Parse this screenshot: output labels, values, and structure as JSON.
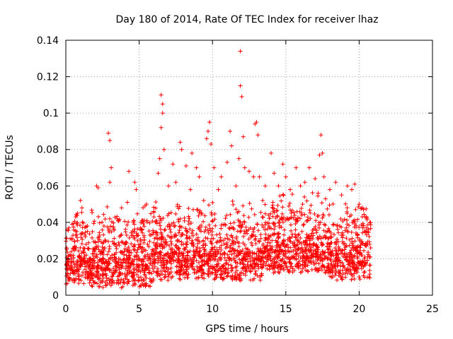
{
  "chart_data": {
    "type": "scatter",
    "title": "Day 180 of 2014, Rate Of TEC Index for receiver lhaz",
    "xlabel": "GPS time / hours",
    "ylabel": "ROTI / TECUs",
    "xlim": [
      0,
      25
    ],
    "ylim": [
      0,
      0.14
    ],
    "xticks": [
      0,
      5,
      10,
      15,
      20,
      25
    ],
    "xtick_labels": [
      "0",
      "5",
      "10",
      "15",
      "20",
      "25"
    ],
    "yticks": [
      0,
      0.02,
      0.04,
      0.06,
      0.08,
      0.1,
      0.12,
      0.14
    ],
    "ytick_labels": [
      "0",
      "0.02",
      "0.04",
      "0.06",
      "0.08",
      "0.1",
      "0.12",
      "0.14"
    ],
    "grid": true,
    "marker": "+",
    "color": "#ff0000",
    "data_x_range": [
      0,
      20.8
    ],
    "series": [
      {
        "name": "ROTI",
        "points": [
          [
            0.1,
            0.012
          ],
          [
            0.3,
            0.031
          ],
          [
            0.5,
            0.022
          ],
          [
            0.8,
            0.045
          ],
          [
            1.0,
            0.052
          ],
          [
            1.1,
            0.048
          ],
          [
            2.1,
            0.06
          ],
          [
            2.2,
            0.059
          ],
          [
            2.3,
            0.033
          ],
          [
            2.6,
            0.038
          ],
          [
            2.9,
            0.089
          ],
          [
            3.0,
            0.085
          ],
          [
            3.0,
            0.062
          ],
          [
            3.1,
            0.07
          ],
          [
            3.5,
            0.042
          ],
          [
            3.8,
            0.048
          ],
          [
            4.2,
            0.051
          ],
          [
            4.3,
            0.068
          ],
          [
            4.6,
            0.04
          ],
          [
            4.7,
            0.062
          ],
          [
            4.8,
            0.058
          ],
          [
            5.4,
            0.049
          ],
          [
            5.5,
            0.05
          ],
          [
            6.0,
            0.043
          ],
          [
            6.3,
            0.067
          ],
          [
            6.5,
            0.11
          ],
          [
            6.6,
            0.105
          ],
          [
            6.6,
            0.1
          ],
          [
            6.5,
            0.092
          ],
          [
            6.4,
            0.075
          ],
          [
            6.7,
            0.08
          ],
          [
            7.0,
            0.06
          ],
          [
            7.3,
            0.072
          ],
          [
            7.5,
            0.062
          ],
          [
            7.8,
            0.084
          ],
          [
            7.9,
            0.08
          ],
          [
            8.2,
            0.071
          ],
          [
            8.5,
            0.058
          ],
          [
            8.6,
            0.078
          ],
          [
            8.9,
            0.07
          ],
          [
            9.1,
            0.065
          ],
          [
            9.4,
            0.052
          ],
          [
            9.6,
            0.086
          ],
          [
            9.7,
            0.09
          ],
          [
            9.8,
            0.095
          ],
          [
            9.9,
            0.083
          ],
          [
            10.1,
            0.07
          ],
          [
            10.4,
            0.058
          ],
          [
            10.6,
            0.065
          ],
          [
            11.0,
            0.073
          ],
          [
            11.2,
            0.09
          ],
          [
            11.3,
            0.082
          ],
          [
            11.6,
            0.06
          ],
          [
            11.8,
            0.075
          ],
          [
            11.9,
            0.134
          ],
          [
            11.9,
            0.115
          ],
          [
            12.0,
            0.109
          ],
          [
            12.1,
            0.087
          ],
          [
            12.2,
            0.07
          ],
          [
            12.5,
            0.068
          ],
          [
            12.8,
            0.065
          ],
          [
            12.9,
            0.094
          ],
          [
            13.0,
            0.095
          ],
          [
            13.1,
            0.088
          ],
          [
            13.2,
            0.065
          ],
          [
            13.6,
            0.06
          ],
          [
            14.0,
            0.078
          ],
          [
            14.2,
            0.067
          ],
          [
            14.5,
            0.06
          ],
          [
            14.8,
            0.072
          ],
          [
            15.0,
            0.065
          ],
          [
            15.3,
            0.058
          ],
          [
            15.7,
            0.07
          ],
          [
            16.0,
            0.06
          ],
          [
            16.3,
            0.062
          ],
          [
            16.6,
            0.07
          ],
          [
            17.0,
            0.064
          ],
          [
            17.3,
            0.077
          ],
          [
            17.4,
            0.088
          ],
          [
            17.5,
            0.078
          ],
          [
            17.6,
            0.065
          ],
          [
            18.0,
            0.058
          ],
          [
            18.4,
            0.062
          ],
          [
            18.8,
            0.055
          ],
          [
            19.2,
            0.06
          ],
          [
            19.5,
            0.058
          ],
          [
            19.7,
            0.061
          ],
          [
            20.0,
            0.05
          ],
          [
            20.3,
            0.047
          ],
          [
            20.5,
            0.043
          ]
        ]
      }
    ]
  }
}
